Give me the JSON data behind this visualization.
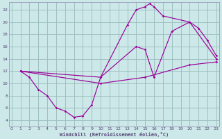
{
  "background_color": "#cce8e8",
  "grid_color": "#99bbbb",
  "line_color": "#990099",
  "xlabel": "Windchill (Refroidissement éolien,°C)",
  "xlim": [
    -0.3,
    23.3
  ],
  "ylim": [
    3.0,
    23.2
  ],
  "xticks": [
    0,
    1,
    2,
    3,
    4,
    5,
    6,
    7,
    8,
    9,
    10,
    11,
    12,
    13,
    14,
    15,
    16,
    17,
    18,
    19,
    20,
    21,
    22,
    23
  ],
  "yticks": [
    4,
    6,
    8,
    10,
    12,
    14,
    16,
    18,
    20,
    22
  ],
  "line1_x": [
    1,
    2,
    3,
    4,
    5,
    6,
    7,
    8,
    9,
    10,
    14,
    15,
    16,
    18,
    20,
    21,
    22,
    23
  ],
  "line1_y": [
    12,
    11,
    9,
    8,
    6,
    5.5,
    4.5,
    4.7,
    6.5,
    11,
    16,
    15.5,
    11,
    18.5,
    20,
    19,
    17,
    14.5
  ],
  "line2_x": [
    1,
    10,
    13,
    14,
    15,
    15.5,
    16,
    17,
    20,
    23
  ],
  "line2_y": [
    12,
    11,
    19.5,
    22,
    22.5,
    23,
    22.5,
    21,
    20,
    14
  ],
  "line3_x": [
    1,
    10,
    15,
    20,
    23
  ],
  "line3_y": [
    12,
    10,
    11,
    13,
    13.5
  ]
}
